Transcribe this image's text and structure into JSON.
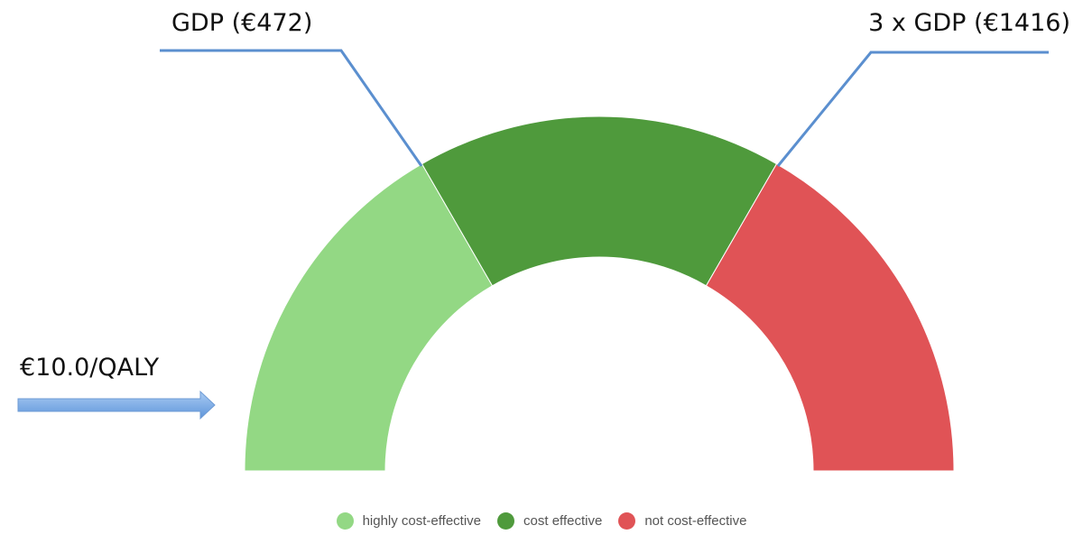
{
  "chart_data": {
    "type": "gauge",
    "title": "",
    "segments": [
      {
        "name": "highly cost-effective",
        "from": 0,
        "to": 472,
        "color": "#93D884"
      },
      {
        "name": "cost effective",
        "from": 472,
        "to": 1416,
        "color": "#4F9A3C"
      },
      {
        "name": "not cost-effective",
        "from": 1416,
        "to": null,
        "color": "#E05356"
      }
    ],
    "thresholds": [
      {
        "label": "GDP (€472)",
        "value": 472
      },
      {
        "label": "3 x GDP (€1416)",
        "value": 1416
      }
    ],
    "value": 10.0,
    "value_label": "€10.0/QALY",
    "legend": {
      "placement": "bottom",
      "items": [
        {
          "label": "highly cost-effective",
          "color": "#93D884"
        },
        {
          "label": "cost effective",
          "color": "#4F9A3C"
        },
        {
          "label": "not cost-effective",
          "color": "#E05356"
        }
      ]
    }
  }
}
